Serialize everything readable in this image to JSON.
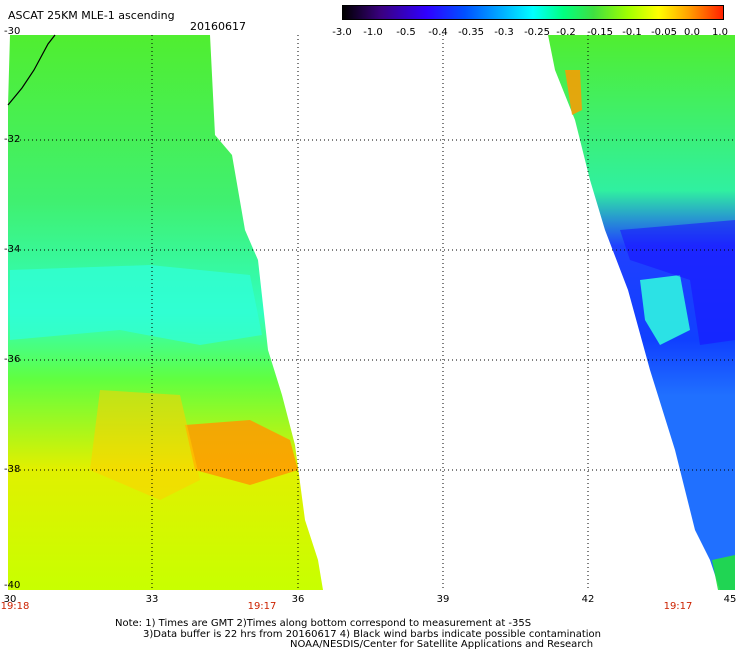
{
  "header": {
    "title": "ASCAT 25KM MLE-1 ascending",
    "date": "20160617"
  },
  "colorbar": {
    "labels": [
      "-3.0",
      "-1.0",
      "-0.5",
      "-0.4",
      "-0.35",
      "-0.3",
      "-0.25",
      "-0.2",
      "-0.15",
      "-0.1",
      "-0.05",
      "0.0",
      "1.0"
    ],
    "colors": [
      "#000000",
      "#2a0070",
      "#5a00c8",
      "#1010ff",
      "#0060ff",
      "#00b0ff",
      "#00ffff",
      "#00ff90",
      "#20e020",
      "#a0ff00",
      "#ffff00",
      "#ffa000",
      "#ff2000"
    ]
  },
  "map": {
    "lat_labels": [
      "-30",
      "-32",
      "-34",
      "-36",
      "-38",
      "-40"
    ],
    "lon_labels": [
      "30",
      "33",
      "36",
      "39",
      "42",
      "45"
    ],
    "time_labels": [
      "19:18",
      "19:17",
      "19:17"
    ]
  },
  "footer": {
    "note1": "Note: 1) Times are GMT 2)Times along bottom correspond to measurement at -35S",
    "note2": "3)Data buffer is 22 hrs from 20160617 4) Black wind barbs indicate possible contamination",
    "note3": "NOAA/NESDIS/Center for Satellite Applications and Research"
  }
}
